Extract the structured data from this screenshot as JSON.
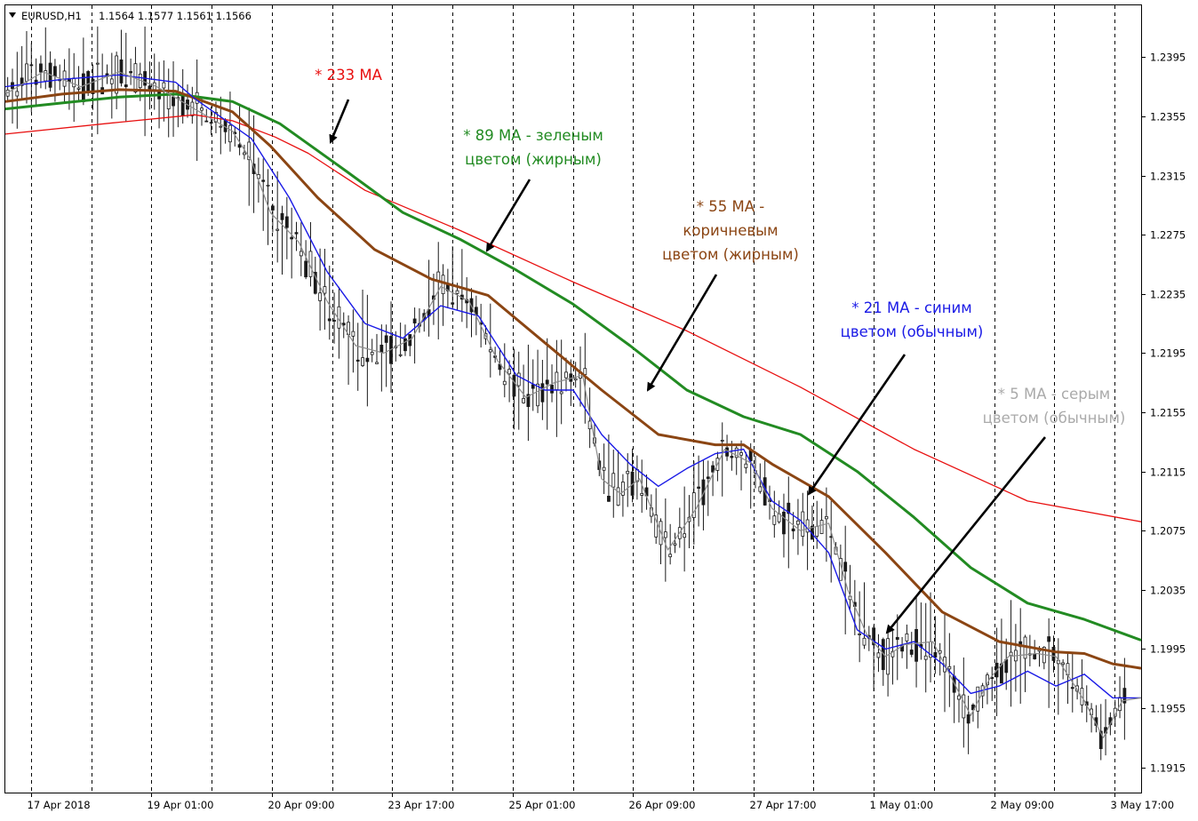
{
  "header": {
    "symbol_timeframe": "EURUSD,H1",
    "ohlc": "1.1564 1.1577 1.1561 1.1566"
  },
  "colors": {
    "ma233": "#e81010",
    "ma89": "#228b22",
    "ma55": "#8b4513",
    "ma21": "#1a1ae6",
    "ma5": "#8c8c8c",
    "candles": "#1a1a1a",
    "grid": "#000000",
    "arrow": "#000000"
  },
  "annotations": [
    {
      "id": "ma233",
      "lines": [
        "* 233 MA"
      ],
      "color": "#e81010"
    },
    {
      "id": "ma89",
      "lines": [
        "* 89 MA - зеленым",
        "цветом (жирным)"
      ],
      "color": "#228b22"
    },
    {
      "id": "ma55",
      "lines": [
        "* 55 MA -",
        "коричневым",
        "цветом (жирным)"
      ],
      "color": "#8b4513"
    },
    {
      "id": "ma21",
      "lines": [
        "* 21 MA - синим",
        "цветом (обычным)"
      ],
      "color": "#1a1ae6"
    },
    {
      "id": "ma5",
      "lines": [
        "* 5 MA - серым",
        "цветом (обычным)"
      ],
      "color": "#aaaaaa"
    }
  ],
  "chart_data": {
    "type": "line",
    "title": "EURUSD,H1",
    "y_ticks": [
      "1.2395",
      "1.2355",
      "1.2315",
      "1.2275",
      "1.2235",
      "1.2195",
      "1.2155",
      "1.2115",
      "1.2075",
      "1.2035",
      "1.1995",
      "1.1955",
      "1.1915"
    ],
    "x_ticks": [
      "17 Apr 2018",
      "19 Apr 01:00",
      "20 Apr 09:00",
      "23 Apr 17:00",
      "25 Apr 01:00",
      "26 Apr 09:00",
      "27 Apr 17:00",
      "1 May 01:00",
      "2 May 09:00",
      "3 May 17:00"
    ],
    "ylim": [
      1.1898,
      1.243
    ],
    "x_range": [
      0,
      240
    ],
    "grid": "vertical dashed",
    "series": [
      {
        "id": "ma233",
        "name": "233 MA",
        "x": [
          0,
          24,
          40,
          48,
          57,
          64,
          76,
          96,
          120,
          144,
          168,
          192,
          216,
          240
        ],
        "y": [
          1.2343,
          1.2351,
          1.2356,
          1.2352,
          1.2341,
          1.233,
          1.2305,
          1.2278,
          1.2243,
          1.221,
          1.2172,
          1.213,
          1.2095,
          1.2081
        ]
      },
      {
        "id": "ma89",
        "name": "89 MA",
        "x": [
          0,
          12,
          24,
          36,
          48,
          58,
          72,
          84,
          96,
          108,
          120,
          132,
          144,
          156,
          168,
          180,
          192,
          204,
          216,
          228,
          240
        ],
        "y": [
          1.236,
          1.2364,
          1.2368,
          1.237,
          1.2365,
          1.235,
          1.2318,
          1.229,
          1.2272,
          1.2251,
          1.2228,
          1.22,
          1.217,
          1.2152,
          1.214,
          1.2115,
          1.2084,
          1.205,
          1.2026,
          1.2015,
          1.2001
        ]
      },
      {
        "id": "ma55",
        "name": "55 MA",
        "x": [
          0,
          12,
          24,
          36,
          48,
          56,
          66,
          78,
          90,
          102,
          114,
          126,
          138,
          150,
          156,
          162,
          174,
          186,
          198,
          210,
          222,
          228,
          234,
          240
        ],
        "y": [
          1.2365,
          1.237,
          1.2373,
          1.2372,
          1.2358,
          1.2335,
          1.23,
          1.2265,
          1.2245,
          1.2234,
          1.2202,
          1.217,
          1.214,
          1.2133,
          1.2133,
          1.212,
          1.2098,
          1.206,
          1.202,
          1.2,
          1.1993,
          1.1992,
          1.1985,
          1.1982
        ]
      },
      {
        "id": "ma21",
        "name": "21 MA",
        "x": [
          0,
          12,
          24,
          36,
          40,
          52,
          60,
          68,
          76,
          84,
          92,
          100,
          108,
          114,
          120,
          126,
          132,
          138,
          144,
          150,
          156,
          162,
          168,
          174,
          180,
          186,
          192,
          198,
          204,
          210,
          216,
          222,
          228,
          234,
          240
        ],
        "y": [
          1.2375,
          1.238,
          1.2383,
          1.2378,
          1.2367,
          1.234,
          1.23,
          1.225,
          1.2215,
          1.2205,
          1.2227,
          1.222,
          1.218,
          1.217,
          1.217,
          1.214,
          1.212,
          1.2105,
          1.2117,
          1.2127,
          1.213,
          1.2095,
          1.2082,
          1.206,
          1.2008,
          1.1995,
          1.2,
          1.1985,
          1.1965,
          1.197,
          1.198,
          1.197,
          1.1978,
          1.1962,
          1.1962
        ]
      },
      {
        "id": "ma5",
        "name": "5 MA",
        "x": [
          0,
          8,
          16,
          24,
          32,
          40,
          48,
          52,
          56,
          62,
          68,
          74,
          80,
          86,
          92,
          98,
          104,
          110,
          116,
          122,
          126,
          130,
          134,
          140,
          146,
          152,
          158,
          162,
          168,
          174,
          178,
          182,
          186,
          190,
          196,
          200,
          204,
          208,
          212,
          218,
          222,
          228,
          232,
          236,
          240
        ],
        "y": [
          1.237,
          1.2385,
          1.2375,
          1.2385,
          1.2375,
          1.236,
          1.2345,
          1.2325,
          1.229,
          1.227,
          1.223,
          1.22,
          1.2195,
          1.2205,
          1.224,
          1.223,
          1.219,
          1.2165,
          1.2175,
          1.218,
          1.211,
          1.21,
          1.211,
          1.2062,
          1.209,
          1.213,
          1.212,
          1.209,
          1.2075,
          1.208,
          1.2035,
          1.2005,
          1.199,
          1.1998,
          1.2,
          1.1975,
          1.195,
          1.1975,
          1.199,
          1.1992,
          1.199,
          1.196,
          1.1935,
          1.196,
          1.1962
        ]
      }
    ]
  }
}
